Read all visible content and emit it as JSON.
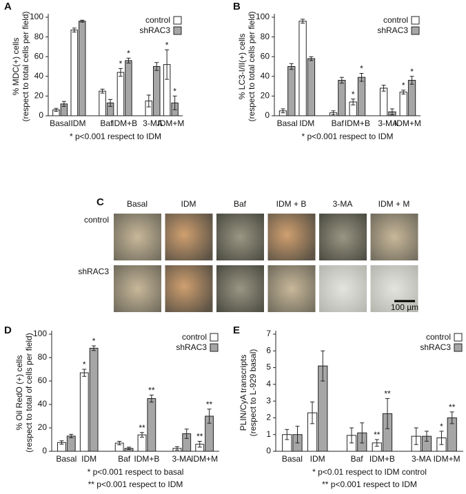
{
  "chart_data": [
    {
      "type": "bar",
      "panel": "A",
      "ylabel": [
        "% MDC(+) cells",
        "(respect to total cells per field)"
      ],
      "categories": [
        "Basal",
        "IDM",
        "Baf",
        "IDM+B",
        "3-MA",
        "IDM+M"
      ],
      "series": [
        {
          "name": "control",
          "color": "#ffffff",
          "values": [
            6,
            87,
            25,
            44,
            15,
            52
          ],
          "errors": [
            1.5,
            2,
            2,
            4,
            6,
            15
          ],
          "annotations": [
            null,
            null,
            null,
            "*",
            null,
            "*"
          ]
        },
        {
          "name": "shRAC3",
          "color": "#a6a6a6",
          "values": [
            12,
            96,
            13,
            56,
            50,
            13
          ],
          "errors": [
            2.5,
            1,
            3.5,
            2.5,
            4,
            7
          ],
          "annotations": [
            null,
            null,
            null,
            "*",
            null,
            "*"
          ]
        }
      ],
      "ylim": [
        0,
        100
      ],
      "yticks": [
        0,
        20,
        40,
        60,
        80,
        100
      ],
      "legend": "upper right",
      "footnotes": [
        "* p<0.001 respect to IDM"
      ]
    },
    {
      "type": "bar",
      "panel": "B",
      "ylabel": [
        "% LC3-I/II(+) cells",
        "(respect to total cells per field)"
      ],
      "categories": [
        "Basal",
        "IDM",
        "Baf",
        "IDM+B",
        "3-MA",
        "IDM+M"
      ],
      "series": [
        {
          "name": "control",
          "color": "#ffffff",
          "values": [
            5,
            96,
            3,
            14,
            28,
            24
          ],
          "errors": [
            2,
            2,
            2,
            3,
            3,
            2
          ],
          "annotations": [
            null,
            null,
            null,
            "*",
            null,
            "*"
          ]
        },
        {
          "name": "shRAC3",
          "color": "#a6a6a6",
          "values": [
            50,
            58,
            36,
            39,
            4,
            36
          ],
          "errors": [
            3,
            2,
            3,
            4,
            3,
            4
          ],
          "annotations": [
            null,
            null,
            null,
            "*",
            null,
            "*"
          ]
        }
      ],
      "ylim": [
        0,
        100
      ],
      "yticks": [
        0,
        20,
        40,
        60,
        80,
        100
      ],
      "legend": "upper right",
      "footnotes": [
        "* p<0.001 respect to IDM"
      ]
    },
    {
      "type": "bar",
      "panel": "D",
      "ylabel": [
        "% Oil RedO (+) cells",
        "(respect to total of cells per field)"
      ],
      "categories": [
        "Basal",
        "IDM",
        "Baf",
        "IDM+B",
        "3-MA",
        "IDM+M"
      ],
      "series": [
        {
          "name": "control",
          "color": "#ffffff",
          "values": [
            7.5,
            67,
            7,
            14,
            2.5,
            6
          ],
          "errors": [
            1.5,
            3,
            1.5,
            2,
            1.5,
            2.5
          ],
          "annotations": [
            null,
            "*",
            null,
            "**",
            null,
            "**"
          ]
        },
        {
          "name": "shRAC3",
          "color": "#a6a6a6",
          "values": [
            13,
            88,
            2.5,
            45,
            15,
            30
          ],
          "errors": [
            1.5,
            2,
            1,
            3,
            4,
            6
          ],
          "annotations": [
            null,
            "*",
            null,
            "**",
            null,
            "**"
          ]
        }
      ],
      "ylim": [
        0,
        100
      ],
      "yticks": [
        0,
        20,
        40,
        60,
        80,
        100
      ],
      "legend": "upper right",
      "footnotes": [
        "* p<0.001 respect to basal",
        "** p<0.001 respect to IDM"
      ]
    },
    {
      "type": "bar",
      "panel": "E",
      "ylabel": [
        "PLIN/CyA transcripts",
        "(respect to L-929  basal)"
      ],
      "categories": [
        "Basal",
        "IDM",
        "Baf",
        "IDM+B",
        "3-MA",
        "IDM+M"
      ],
      "series": [
        {
          "name": "control",
          "color": "#ffffff",
          "values": [
            1,
            2.3,
            0.95,
            0.5,
            0.9,
            0.8
          ],
          "errors": [
            0.3,
            0.65,
            0.45,
            0.2,
            0.5,
            0.4
          ],
          "annotations": [
            null,
            null,
            null,
            "**",
            null,
            "*"
          ]
        },
        {
          "name": "shRAC3",
          "color": "#a6a6a6",
          "values": [
            1,
            5.1,
            1.1,
            2.25,
            0.9,
            2
          ],
          "errors": [
            0.5,
            0.9,
            0.6,
            0.9,
            0.3,
            0.35
          ],
          "annotations": [
            null,
            null,
            null,
            "**",
            null,
            "**"
          ]
        }
      ],
      "ylim": [
        0,
        7
      ],
      "yticks": [
        0,
        1,
        2,
        3,
        4,
        5,
        6,
        7
      ],
      "legend": "upper right",
      "footnotes": [
        "* p<0.01 respect to IDM control",
        "** p<0.001 respect to IDM"
      ]
    }
  ],
  "micrograph_panel": {
    "panel": "C",
    "columns": [
      "Basal",
      "IDM",
      "Baf",
      "IDM + B",
      "3-MA",
      "IDM + M"
    ],
    "rows": [
      "control",
      "shRAC3"
    ],
    "scale_bar": "100 µm"
  }
}
